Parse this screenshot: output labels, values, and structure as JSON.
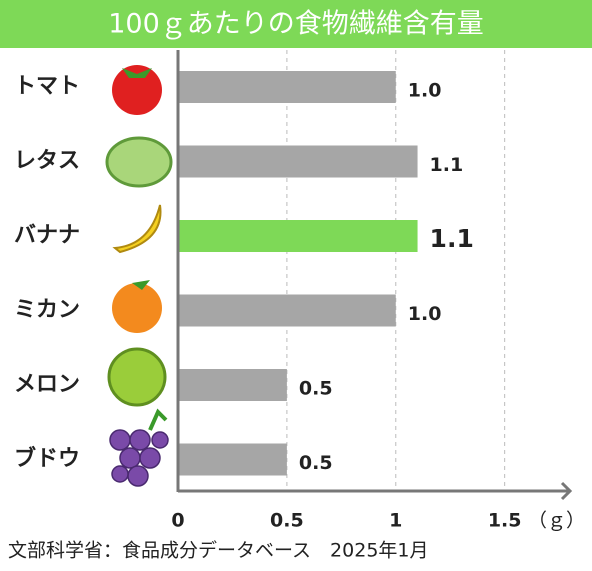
{
  "chart_data": {
    "type": "barh",
    "title": "100ｇあたりの食物繊維含有量",
    "categories": [
      "トマト",
      "レタス",
      "バナナ",
      "ミカン",
      "メロン",
      "ブドウ"
    ],
    "values": [
      1.0,
      1.1,
      1.1,
      1.0,
      0.5,
      0.5
    ],
    "value_labels": [
      "1.0",
      "1.1",
      "1.1",
      "1.0",
      "0.5",
      "0.5"
    ],
    "colors": [
      "#a6a6a6",
      "#a6a6a6",
      "#7ed957",
      "#a6a6a6",
      "#a6a6a6",
      "#a6a6a6"
    ],
    "xlim": [
      0,
      1.8
    ],
    "xticks": [
      0,
      0.5,
      1,
      1.5
    ],
    "xlabel": "（ｇ）",
    "grid": true,
    "source": "文部科学省：食品成分データベース　2025年1月"
  }
}
